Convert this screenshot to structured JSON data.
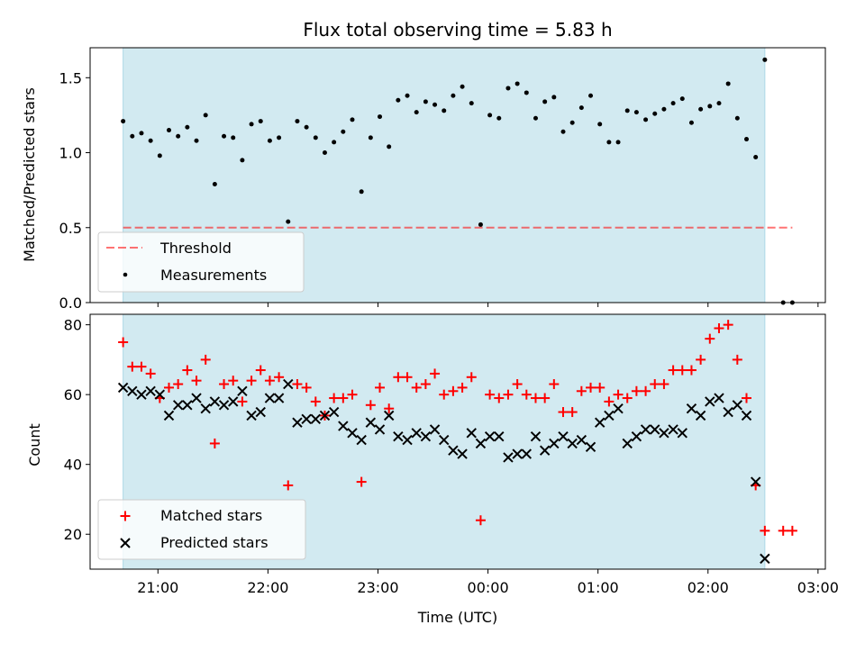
{
  "title": "Flux total observing time = 5.83 h",
  "colors": {
    "span": "#add8e6",
    "threshold": "#ff0000",
    "measurement": "#000000",
    "matched": "#ff0000",
    "predicted": "#000000"
  },
  "chart_data": [
    {
      "type": "scatter",
      "ylabel": "Matched/Predicted stars",
      "xlabel": "",
      "ylim": [
        0.0,
        1.7
      ],
      "xlim": [
        "20:23",
        "03:04"
      ],
      "yticks": [
        0.0,
        0.5,
        1.0,
        1.5
      ],
      "ytick_labels": [
        "0.0",
        "0.5",
        "1.0",
        "1.5"
      ],
      "shaded_span": [
        "20:41",
        "02:31"
      ],
      "legend": {
        "placement": "lower-left",
        "entries": [
          "Threshold",
          "Measurements"
        ]
      },
      "threshold": {
        "name": "Threshold",
        "x": [
          "20:41",
          "02:46"
        ],
        "y": 0.5,
        "style": "dashed"
      },
      "series": [
        {
          "name": "Measurements",
          "marker": "dot",
          "points": [
            [
              "20:41",
              1.21
            ],
            [
              "20:46",
              1.11
            ],
            [
              "20:51",
              1.13
            ],
            [
              "20:56",
              1.08
            ],
            [
              "21:01",
              0.98
            ],
            [
              "21:06",
              1.15
            ],
            [
              "21:11",
              1.11
            ],
            [
              "21:16",
              1.17
            ],
            [
              "21:21",
              1.08
            ],
            [
              "21:26",
              1.25
            ],
            [
              "21:31",
              0.79
            ],
            [
              "21:36",
              1.11
            ],
            [
              "21:41",
              1.1
            ],
            [
              "21:46",
              0.95
            ],
            [
              "21:51",
              1.19
            ],
            [
              "21:56",
              1.21
            ],
            [
              "22:01",
              1.08
            ],
            [
              "22:06",
              1.1
            ],
            [
              "22:11",
              0.54
            ],
            [
              "22:16",
              1.21
            ],
            [
              "22:21",
              1.17
            ],
            [
              "22:26",
              1.1
            ],
            [
              "22:31",
              1.0
            ],
            [
              "22:36",
              1.07
            ],
            [
              "22:41",
              1.14
            ],
            [
              "22:46",
              1.22
            ],
            [
              "22:51",
              0.74
            ],
            [
              "22:56",
              1.1
            ],
            [
              "23:01",
              1.24
            ],
            [
              "23:06",
              1.04
            ],
            [
              "23:11",
              1.35
            ],
            [
              "23:16",
              1.38
            ],
            [
              "23:21",
              1.27
            ],
            [
              "23:26",
              1.34
            ],
            [
              "23:31",
              1.32
            ],
            [
              "23:36",
              1.28
            ],
            [
              "23:41",
              1.38
            ],
            [
              "23:46",
              1.44
            ],
            [
              "23:51",
              1.33
            ],
            [
              "23:56",
              0.52
            ],
            [
              "00:01",
              1.25
            ],
            [
              "00:06",
              1.23
            ],
            [
              "00:11",
              1.43
            ],
            [
              "00:16",
              1.46
            ],
            [
              "00:21",
              1.4
            ],
            [
              "00:26",
              1.23
            ],
            [
              "00:31",
              1.34
            ],
            [
              "00:36",
              1.37
            ],
            [
              "00:41",
              1.14
            ],
            [
              "00:46",
              1.2
            ],
            [
              "00:51",
              1.3
            ],
            [
              "00:56",
              1.38
            ],
            [
              "01:01",
              1.19
            ],
            [
              "01:06",
              1.07
            ],
            [
              "01:11",
              1.07
            ],
            [
              "01:16",
              1.28
            ],
            [
              "01:21",
              1.27
            ],
            [
              "01:26",
              1.22
            ],
            [
              "01:31",
              1.26
            ],
            [
              "01:36",
              1.29
            ],
            [
              "01:41",
              1.33
            ],
            [
              "01:46",
              1.36
            ],
            [
              "01:51",
              1.2
            ],
            [
              "01:56",
              1.29
            ],
            [
              "02:01",
              1.31
            ],
            [
              "02:06",
              1.33
            ],
            [
              "02:11",
              1.46
            ],
            [
              "02:16",
              1.23
            ],
            [
              "02:21",
              1.09
            ],
            [
              "02:26",
              0.97
            ],
            [
              "02:31",
              1.62
            ],
            [
              "02:41",
              0.0
            ],
            [
              "02:46",
              0.0
            ]
          ]
        }
      ]
    },
    {
      "type": "scatter",
      "xlabel": "Time (UTC)",
      "ylabel": "Count",
      "ylim": [
        10,
        83
      ],
      "xlim": [
        "20:23",
        "03:04"
      ],
      "yticks": [
        20,
        40,
        60,
        80
      ],
      "xticks": [
        "21:00",
        "22:00",
        "23:00",
        "00:00",
        "01:00",
        "02:00",
        "03:00"
      ],
      "shaded_span": [
        "20:41",
        "02:31"
      ],
      "legend": {
        "placement": "lower-left",
        "entries": [
          "Matched stars",
          "Predicted stars"
        ]
      },
      "series": [
        {
          "name": "Matched stars",
          "marker": "plus",
          "points": [
            [
              "20:41",
              75
            ],
            [
              "20:46",
              68
            ],
            [
              "20:51",
              68
            ],
            [
              "20:56",
              66
            ],
            [
              "21:01",
              59
            ],
            [
              "21:06",
              62
            ],
            [
              "21:11",
              63
            ],
            [
              "21:16",
              67
            ],
            [
              "21:21",
              64
            ],
            [
              "21:26",
              70
            ],
            [
              "21:31",
              46
            ],
            [
              "21:36",
              63
            ],
            [
              "21:41",
              64
            ],
            [
              "21:46",
              58
            ],
            [
              "21:51",
              64
            ],
            [
              "21:56",
              67
            ],
            [
              "22:01",
              64
            ],
            [
              "22:06",
              65
            ],
            [
              "22:11",
              34
            ],
            [
              "22:16",
              63
            ],
            [
              "22:21",
              62
            ],
            [
              "22:26",
              58
            ],
            [
              "22:31",
              54
            ],
            [
              "22:36",
              59
            ],
            [
              "22:41",
              59
            ],
            [
              "22:46",
              60
            ],
            [
              "22:51",
              35
            ],
            [
              "22:56",
              57
            ],
            [
              "23:01",
              62
            ],
            [
              "23:06",
              56
            ],
            [
              "23:11",
              65
            ],
            [
              "23:16",
              65
            ],
            [
              "23:21",
              62
            ],
            [
              "23:26",
              63
            ],
            [
              "23:31",
              66
            ],
            [
              "23:36",
              60
            ],
            [
              "23:41",
              61
            ],
            [
              "23:46",
              62
            ],
            [
              "23:51",
              65
            ],
            [
              "23:56",
              24
            ],
            [
              "00:01",
              60
            ],
            [
              "00:06",
              59
            ],
            [
              "00:11",
              60
            ],
            [
              "00:16",
              63
            ],
            [
              "00:21",
              60
            ],
            [
              "00:26",
              59
            ],
            [
              "00:31",
              59
            ],
            [
              "00:36",
              63
            ],
            [
              "00:41",
              55
            ],
            [
              "00:46",
              55
            ],
            [
              "00:51",
              61
            ],
            [
              "00:56",
              62
            ],
            [
              "01:01",
              62
            ],
            [
              "01:06",
              58
            ],
            [
              "01:11",
              60
            ],
            [
              "01:16",
              59
            ],
            [
              "01:21",
              61
            ],
            [
              "01:26",
              61
            ],
            [
              "01:31",
              63
            ],
            [
              "01:36",
              63
            ],
            [
              "01:41",
              67
            ],
            [
              "01:46",
              67
            ],
            [
              "01:51",
              67
            ],
            [
              "01:56",
              70
            ],
            [
              "02:01",
              76
            ],
            [
              "02:06",
              79
            ],
            [
              "02:11",
              80
            ],
            [
              "02:16",
              70
            ],
            [
              "02:21",
              59
            ],
            [
              "02:26",
              34
            ],
            [
              "02:31",
              21
            ],
            [
              "02:41",
              21
            ],
            [
              "02:46",
              21
            ]
          ]
        },
        {
          "name": "Predicted stars",
          "marker": "x",
          "points": [
            [
              "20:41",
              62
            ],
            [
              "20:46",
              61
            ],
            [
              "20:51",
              60
            ],
            [
              "20:56",
              61
            ],
            [
              "21:01",
              60
            ],
            [
              "21:06",
              54
            ],
            [
              "21:11",
              57
            ],
            [
              "21:16",
              57
            ],
            [
              "21:21",
              59
            ],
            [
              "21:26",
              56
            ],
            [
              "21:31",
              58
            ],
            [
              "21:36",
              57
            ],
            [
              "21:41",
              58
            ],
            [
              "21:46",
              61
            ],
            [
              "21:51",
              54
            ],
            [
              "21:56",
              55
            ],
            [
              "22:01",
              59
            ],
            [
              "22:06",
              59
            ],
            [
              "22:11",
              63
            ],
            [
              "22:16",
              52
            ],
            [
              "22:21",
              53
            ],
            [
              "22:26",
              53
            ],
            [
              "22:31",
              54
            ],
            [
              "22:36",
              55
            ],
            [
              "22:41",
              51
            ],
            [
              "22:46",
              49
            ],
            [
              "22:51",
              47
            ],
            [
              "22:56",
              52
            ],
            [
              "23:01",
              50
            ],
            [
              "23:06",
              54
            ],
            [
              "23:11",
              48
            ],
            [
              "23:16",
              47
            ],
            [
              "23:21",
              49
            ],
            [
              "23:26",
              48
            ],
            [
              "23:31",
              50
            ],
            [
              "23:36",
              47
            ],
            [
              "23:41",
              44
            ],
            [
              "23:46",
              43
            ],
            [
              "23:51",
              49
            ],
            [
              "23:56",
              46
            ],
            [
              "00:01",
              48
            ],
            [
              "00:06",
              48
            ],
            [
              "00:11",
              42
            ],
            [
              "00:16",
              43
            ],
            [
              "00:21",
              43
            ],
            [
              "00:26",
              48
            ],
            [
              "00:31",
              44
            ],
            [
              "00:36",
              46
            ],
            [
              "00:41",
              48
            ],
            [
              "00:46",
              46
            ],
            [
              "00:51",
              47
            ],
            [
              "00:56",
              45
            ],
            [
              "01:01",
              52
            ],
            [
              "01:06",
              54
            ],
            [
              "01:11",
              56
            ],
            [
              "01:16",
              46
            ],
            [
              "01:21",
              48
            ],
            [
              "01:26",
              50
            ],
            [
              "01:31",
              50
            ],
            [
              "01:36",
              49
            ],
            [
              "01:41",
              50
            ],
            [
              "01:46",
              49
            ],
            [
              "01:51",
              56
            ],
            [
              "01:56",
              54
            ],
            [
              "02:01",
              58
            ],
            [
              "02:06",
              59
            ],
            [
              "02:11",
              55
            ],
            [
              "02:16",
              57
            ],
            [
              "02:21",
              54
            ],
            [
              "02:26",
              35
            ],
            [
              "02:31",
              13
            ]
          ]
        }
      ]
    }
  ]
}
